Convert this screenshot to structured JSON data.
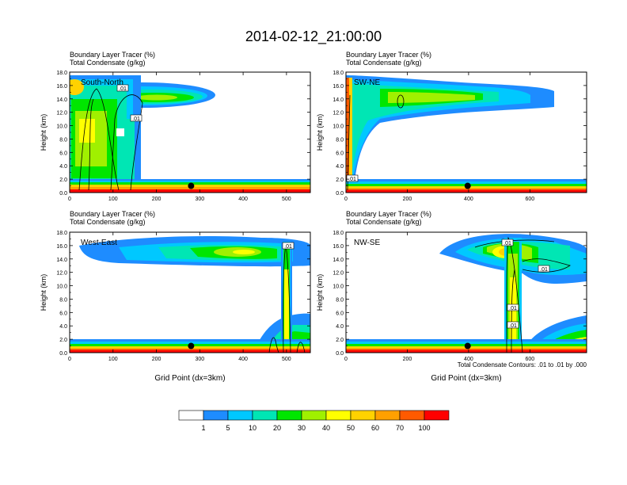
{
  "title": "2014-02-12_21:00:00",
  "colors": {
    "palette": [
      "#ffffff",
      "#1e8cff",
      "#00c8ff",
      "#00e6b4",
      "#00e600",
      "#a0f000",
      "#ffff00",
      "#ffd200",
      "#ffa000",
      "#ff5a00",
      "#ff0000"
    ],
    "contour": "#000000"
  },
  "chart_data": [
    {
      "type": "heatmap",
      "panel_label": "South-North",
      "title_line1": "Boundary Layer Tracer   (%)",
      "title_line2": "Total Condensate   (g/kg)",
      "ylabel": "Height (km)",
      "xlabel": "",
      "xlim": [
        0,
        555
      ],
      "ylim": [
        0,
        18
      ],
      "xticks": [
        "0",
        "100",
        "200",
        "300",
        "400",
        "500"
      ],
      "xtick_values": [
        0,
        100,
        200,
        300,
        400,
        500
      ],
      "yticks": [
        "0.0",
        "2.0",
        "4.0",
        "6.0",
        "8.0",
        "10.0",
        "12.0",
        "14.0",
        "16.0",
        "18.0"
      ],
      "contour_labels": [
        ".01",
        ".01"
      ],
      "marker_x": 280,
      "marker_y": 1.0
    },
    {
      "type": "heatmap",
      "panel_label": "SW-NE",
      "title_line1": "Boundary Layer Tracer   (%)",
      "title_line2": "Total Condensate   (g/kg)",
      "ylabel": "Height (km)",
      "xlabel": "",
      "xlim": [
        0,
        785
      ],
      "ylim": [
        0,
        18
      ],
      "xticks": [
        "0",
        "200",
        "400",
        "600"
      ],
      "xtick_values": [
        0,
        200,
        400,
        600
      ],
      "yticks": [
        "0.0",
        "2.0",
        "4.0",
        "6.0",
        "8.0",
        "10.0",
        "12.0",
        "14.0",
        "16.0",
        "18.0"
      ],
      "contour_labels": [
        ".01"
      ],
      "marker_x": 397,
      "marker_y": 1.0
    },
    {
      "type": "heatmap",
      "panel_label": "West-East",
      "title_line1": "Boundary Layer Tracer   (%)",
      "title_line2": "Total Condensate   (g/kg)",
      "ylabel": "Height (km)",
      "xlabel": "Grid Point (dx=3km)",
      "xlim": [
        0,
        555
      ],
      "ylim": [
        0,
        18
      ],
      "xticks": [
        "0",
        "100",
        "200",
        "300",
        "400",
        "500"
      ],
      "xtick_values": [
        0,
        100,
        200,
        300,
        400,
        500
      ],
      "yticks": [
        "0.0",
        "2.0",
        "4.0",
        "6.0",
        "8.0",
        "10.0",
        "12.0",
        "14.0",
        "16.0",
        "18.0"
      ],
      "contour_labels": [
        ".01"
      ],
      "marker_x": 280,
      "marker_y": 1.0
    },
    {
      "type": "heatmap",
      "panel_label": "NW-SE",
      "title_line1": "Boundary Layer Tracer   (%)",
      "title_line2": "Total Condensate   (g/kg)",
      "ylabel": "Height (km)",
      "xlabel": "Grid Point (dx=3km)",
      "xlim": [
        0,
        785
      ],
      "ylim": [
        0,
        18
      ],
      "xticks": [
        "0",
        "200",
        "400",
        "600"
      ],
      "xtick_values": [
        0,
        200,
        400,
        600
      ],
      "yticks": [
        "0.0",
        "2.0",
        "4.0",
        "6.0",
        "8.0",
        "10.0",
        "12.0",
        "14.0",
        "16.0",
        "18.0"
      ],
      "contour_labels": [
        ".01",
        ".01",
        ".01",
        ".01"
      ],
      "marker_x": 397,
      "marker_y": 1.0,
      "footnote": "Total Condensate Contours: .01 to .01 by .000"
    }
  ],
  "colorbar": {
    "labels": [
      "1",
      "5",
      "10",
      "20",
      "30",
      "40",
      "50",
      "60",
      "70",
      "100"
    ]
  }
}
